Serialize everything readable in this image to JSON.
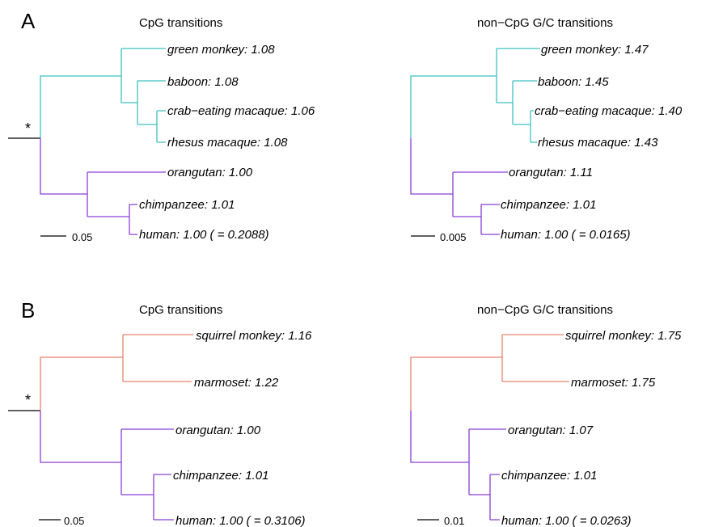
{
  "colors": {
    "old_world_monkeys": "#3fbfbf",
    "great_apes": "#8a3fd6",
    "new_world_monkeys": "#e8846e",
    "root": "#000000"
  },
  "panels": [
    {
      "letter": "A",
      "root_marker": "*",
      "trees": [
        {
          "title": "CpG transitions",
          "scale_label": "0.05",
          "leaves": [
            {
              "label": "green monkey: 1.08",
              "group": "old_world_monkeys"
            },
            {
              "label": "baboon: 1.08",
              "group": "old_world_monkeys"
            },
            {
              "label": "crab−eating macaque: 1.06",
              "group": "old_world_monkeys"
            },
            {
              "label": "rhesus macaque: 1.08",
              "group": "old_world_monkeys"
            },
            {
              "label": "orangutan: 1.00",
              "group": "great_apes"
            },
            {
              "label": "chimpanzee: 1.01",
              "group": "great_apes"
            },
            {
              "label": "human: 1.00 ( = 0.2088)",
              "group": "great_apes"
            }
          ]
        },
        {
          "title": "non−CpG G/C transitions",
          "scale_label": "0.005",
          "leaves": [
            {
              "label": "green monkey: 1.47",
              "group": "old_world_monkeys"
            },
            {
              "label": "baboon: 1.45",
              "group": "old_world_monkeys"
            },
            {
              "label": "crab−eating macaque: 1.40",
              "group": "old_world_monkeys"
            },
            {
              "label": "rhesus macaque: 1.43",
              "group": "old_world_monkeys"
            },
            {
              "label": "orangutan: 1.11",
              "group": "great_apes"
            },
            {
              "label": "chimpanzee: 1.01",
              "group": "great_apes"
            },
            {
              "label": "human: 1.00 ( = 0.0165)",
              "group": "great_apes"
            }
          ]
        }
      ]
    },
    {
      "letter": "B",
      "root_marker": "*",
      "trees": [
        {
          "title": "CpG transitions",
          "scale_label": "0.05",
          "leaves": [
            {
              "label": "squirrel monkey: 1.16",
              "group": "new_world_monkeys"
            },
            {
              "label": "marmoset: 1.22",
              "group": "new_world_monkeys"
            },
            {
              "label": "orangutan: 1.00",
              "group": "great_apes"
            },
            {
              "label": "chimpanzee: 1.01",
              "group": "great_apes"
            },
            {
              "label": "human: 1.00 ( = 0.3106)",
              "group": "great_apes"
            }
          ]
        },
        {
          "title": "non−CpG G/C transitions",
          "scale_label": "0.01",
          "leaves": [
            {
              "label": "squirrel monkey: 1.75",
              "group": "new_world_monkeys"
            },
            {
              "label": "marmoset: 1.75",
              "group": "new_world_monkeys"
            },
            {
              "label": "orangutan: 1.07",
              "group": "great_apes"
            },
            {
              "label": "chimpanzee: 1.01",
              "group": "great_apes"
            },
            {
              "label": "human: 1.00 ( = 0.0263)",
              "group": "great_apes"
            }
          ]
        }
      ]
    }
  ]
}
